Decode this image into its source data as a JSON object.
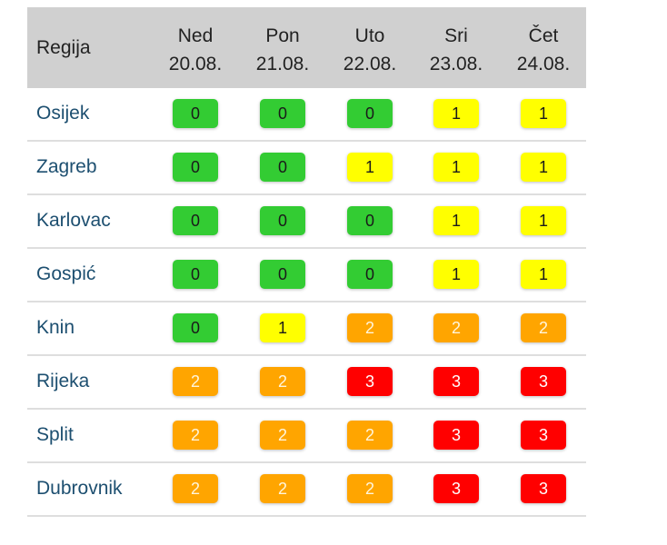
{
  "header": {
    "region_label": "Regija",
    "days": [
      {
        "day": "Ned",
        "date": "20.08."
      },
      {
        "day": "Pon",
        "date": "21.08."
      },
      {
        "day": "Uto",
        "date": "22.08."
      },
      {
        "day": "Sri",
        "date": "23.08."
      },
      {
        "day": "Čet",
        "date": "24.08."
      }
    ]
  },
  "level_colors": {
    "0": {
      "bg": "#33cc33",
      "fg": "#1a1a1a"
    },
    "1": {
      "bg": "#ffff00",
      "fg": "#1a1a1a"
    },
    "2": {
      "bg": "#ffa500",
      "fg": "#fff5dc"
    },
    "3": {
      "bg": "#ff0000",
      "fg": "#ffffff"
    }
  },
  "rows": [
    {
      "region": "Osijek",
      "levels": [
        "0",
        "0",
        "0",
        "1",
        "1"
      ]
    },
    {
      "region": "Zagreb",
      "levels": [
        "0",
        "0",
        "1",
        "1",
        "1"
      ]
    },
    {
      "region": "Karlovac",
      "levels": [
        "0",
        "0",
        "0",
        "1",
        "1"
      ]
    },
    {
      "region": "Gospić",
      "levels": [
        "0",
        "0",
        "0",
        "1",
        "1"
      ]
    },
    {
      "region": "Knin",
      "levels": [
        "0",
        "1",
        "2",
        "2",
        "2"
      ]
    },
    {
      "region": "Rijeka",
      "levels": [
        "2",
        "2",
        "3",
        "3",
        "3"
      ]
    },
    {
      "region": "Split",
      "levels": [
        "2",
        "2",
        "2",
        "3",
        "3"
      ]
    },
    {
      "region": "Dubrovnik",
      "levels": [
        "2",
        "2",
        "2",
        "3",
        "3"
      ]
    }
  ]
}
